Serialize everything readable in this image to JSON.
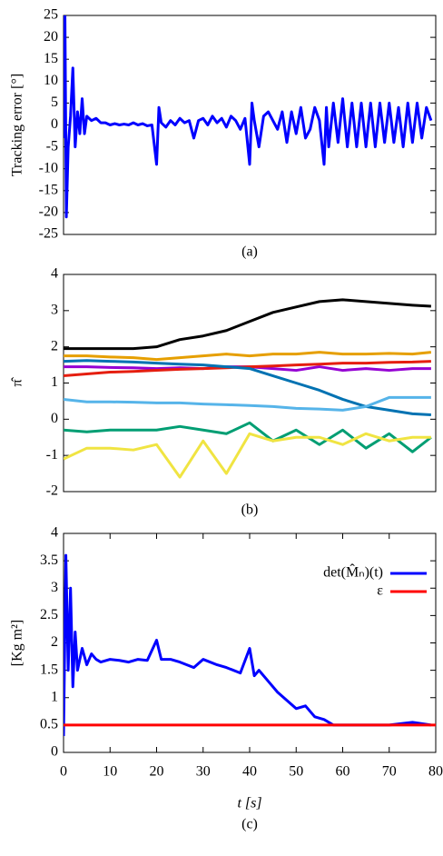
{
  "chart_data": [
    {
      "type": "line",
      "title": "(a)",
      "ylabel": "Tracking error [°]",
      "xlim": [
        0,
        80
      ],
      "ylim": [
        -25,
        25
      ],
      "yticks": [
        -25,
        -20,
        -15,
        -10,
        -5,
        0,
        5,
        10,
        15,
        20,
        25
      ],
      "x": [
        0,
        0.3,
        0.6,
        1,
        1.5,
        2,
        2.5,
        3,
        3.5,
        4,
        4.5,
        5,
        6,
        7,
        8,
        9,
        10,
        11,
        12,
        13,
        14,
        15,
        16,
        17,
        18,
        19,
        20,
        20.5,
        21,
        22,
        23,
        24,
        25,
        26,
        27,
        28,
        29,
        30,
        31,
        32,
        33,
        34,
        35,
        36,
        37,
        38,
        39,
        40,
        40.5,
        41,
        42,
        43,
        44,
        45,
        46,
        47,
        48,
        49,
        50,
        51,
        52,
        53,
        54,
        55,
        56,
        56.5,
        57,
        58,
        59,
        60,
        61,
        62,
        63,
        64,
        65,
        66,
        67,
        68,
        69,
        70,
        71,
        72,
        73,
        74,
        75,
        76,
        77,
        78,
        79
      ],
      "series": [
        {
          "color": "#0000ff",
          "values": [
            -3,
            25,
            -21,
            -5,
            2,
            13,
            -5,
            3,
            -2,
            6,
            -2,
            2,
            1,
            1.5,
            0.5,
            0.5,
            0,
            0.3,
            0,
            0.2,
            0,
            0.5,
            0,
            0.3,
            -0.2,
            0,
            -9,
            4,
            0.5,
            -0.5,
            1,
            0,
            1.5,
            0.5,
            1,
            -3,
            1,
            1.5,
            0,
            2,
            0.5,
            1.5,
            -0.5,
            2,
            1,
            -1,
            1.5,
            -9,
            5,
            1,
            -5,
            2,
            3,
            1,
            -1,
            3,
            -4,
            3,
            -2,
            4,
            -3,
            -1,
            4,
            1,
            -9,
            4,
            -5,
            5,
            -4,
            6,
            -5,
            5,
            -5,
            5,
            -5,
            5,
            -5,
            5,
            -4,
            5,
            -4,
            4,
            -5,
            5,
            -4,
            5,
            -3,
            4,
            1
          ]
        }
      ]
    },
    {
      "type": "line",
      "title": "(b)",
      "ylabel": "π̂",
      "xlim": [
        0,
        80
      ],
      "ylim": [
        -2,
        4
      ],
      "yticks": [
        -2,
        -1,
        0,
        1,
        2,
        3,
        4
      ],
      "x": [
        0,
        5,
        10,
        15,
        20,
        25,
        30,
        35,
        40,
        45,
        50,
        55,
        60,
        65,
        70,
        75,
        79
      ],
      "series": [
        {
          "color": "#000000",
          "values": [
            1.95,
            1.95,
            1.95,
            1.95,
            2.0,
            2.2,
            2.3,
            2.45,
            2.7,
            2.95,
            3.1,
            3.25,
            3.3,
            3.25,
            3.2,
            3.15,
            3.12
          ]
        },
        {
          "color": "#e69f00",
          "values": [
            1.75,
            1.75,
            1.72,
            1.7,
            1.65,
            1.7,
            1.75,
            1.8,
            1.75,
            1.8,
            1.8,
            1.85,
            1.8,
            1.8,
            1.82,
            1.8,
            1.85
          ]
        },
        {
          "color": "#9400d3",
          "values": [
            1.45,
            1.45,
            1.43,
            1.42,
            1.4,
            1.42,
            1.4,
            1.45,
            1.45,
            1.4,
            1.35,
            1.45,
            1.35,
            1.4,
            1.35,
            1.4,
            1.4
          ]
        },
        {
          "color": "#e51e10",
          "values": [
            1.2,
            1.25,
            1.3,
            1.32,
            1.35,
            1.38,
            1.4,
            1.42,
            1.45,
            1.47,
            1.5,
            1.52,
            1.55,
            1.55,
            1.57,
            1.58,
            1.6
          ]
        },
        {
          "color": "#0072b2",
          "values": [
            1.6,
            1.62,
            1.6,
            1.58,
            1.55,
            1.52,
            1.5,
            1.45,
            1.4,
            1.2,
            1.0,
            0.8,
            0.55,
            0.35,
            0.25,
            0.15,
            0.12
          ]
        },
        {
          "color": "#56b4e9",
          "values": [
            0.55,
            0.48,
            0.48,
            0.47,
            0.45,
            0.45,
            0.42,
            0.4,
            0.38,
            0.35,
            0.3,
            0.28,
            0.25,
            0.35,
            0.6,
            0.6,
            0.6
          ]
        },
        {
          "color": "#009e73",
          "values": [
            -0.3,
            -0.35,
            -0.3,
            -0.3,
            -0.3,
            -0.2,
            -0.3,
            -0.4,
            -0.1,
            -0.6,
            -0.3,
            -0.7,
            -0.3,
            -0.8,
            -0.4,
            -0.9,
            -0.5
          ]
        },
        {
          "color": "#f0e442",
          "values": [
            -1.1,
            -0.8,
            -0.8,
            -0.85,
            -0.7,
            -1.6,
            -0.6,
            -1.5,
            -0.4,
            -0.6,
            -0.5,
            -0.5,
            -0.7,
            -0.4,
            -0.6,
            -0.5,
            -0.5
          ]
        }
      ]
    },
    {
      "type": "line",
      "title": "(c)",
      "ylabel": "[Kg m²]",
      "xlabel": "t [s]",
      "xlim": [
        0,
        80
      ],
      "xticks": [
        0,
        10,
        20,
        30,
        40,
        50,
        60,
        70,
        80
      ],
      "ylim": [
        0,
        4
      ],
      "yticks": [
        0,
        0.5,
        1,
        1.5,
        2,
        2.5,
        3,
        3.5,
        4
      ],
      "legend": "upper right",
      "x": [
        0,
        0.5,
        1,
        1.5,
        2,
        2.5,
        3,
        4,
        5,
        6,
        7,
        8,
        10,
        12,
        14,
        16,
        18,
        20,
        21,
        23,
        25,
        28,
        30,
        33,
        35,
        38,
        40,
        41,
        42,
        44,
        46,
        48,
        50,
        52,
        54,
        56,
        58,
        60,
        65,
        70,
        75,
        79
      ],
      "series": [
        {
          "name": "det(M̂ₙ)(t)",
          "color": "#0000ff",
          "values": [
            0.3,
            3.6,
            1.5,
            3.0,
            1.2,
            2.2,
            1.5,
            1.9,
            1.6,
            1.8,
            1.7,
            1.65,
            1.7,
            1.68,
            1.65,
            1.7,
            1.68,
            2.05,
            1.7,
            1.7,
            1.65,
            1.55,
            1.7,
            1.6,
            1.55,
            1.45,
            1.9,
            1.4,
            1.5,
            1.3,
            1.1,
            0.95,
            0.8,
            0.85,
            0.65,
            0.6,
            0.5,
            0.5,
            0.5,
            0.5,
            0.55,
            0.5
          ]
        },
        {
          "name": "ε",
          "color": "#ff0000",
          "x": [
            0,
            80
          ],
          "values": [
            0.5,
            0.5
          ]
        }
      ]
    }
  ]
}
